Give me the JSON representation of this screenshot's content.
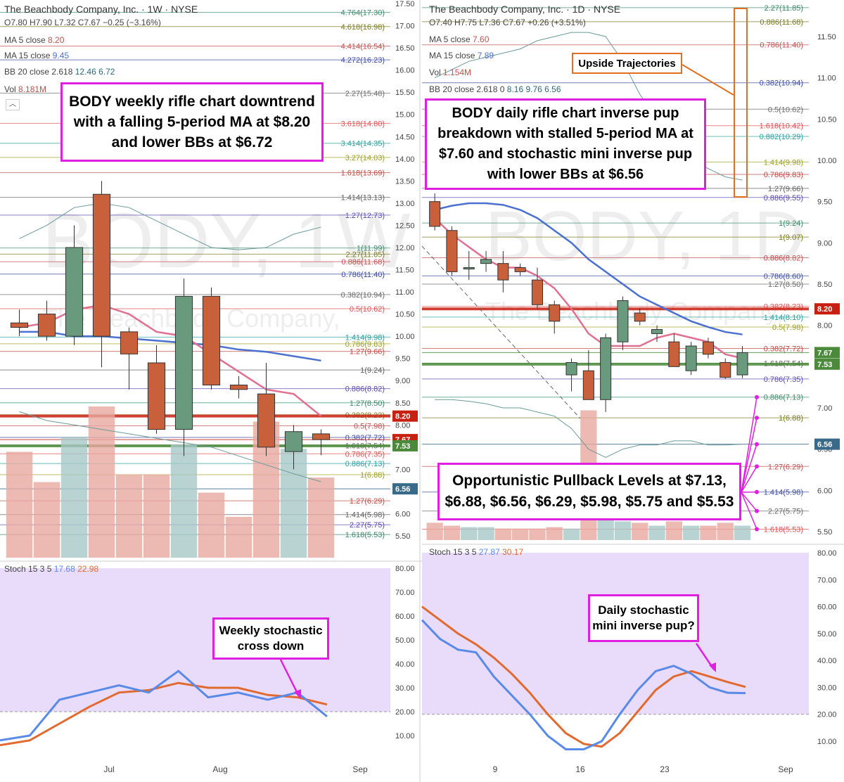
{
  "colors": {
    "up": "#6a9a7e",
    "down": "#c8603c",
    "ma_fast": "#e07090",
    "ma_slow": "#4a70d0",
    "stoch_k": "#5a8ae8",
    "stoch_d": "#e06a30",
    "callout": "#e020e0",
    "red_line": "#c82010",
    "green_line": "#4a8a3a",
    "stoch_bg": "#e9dcfa"
  },
  "left": {
    "symbol": "The Beachbody Company, Inc. · 1W · NYSE",
    "ohlc": "O7.80 H7.90 L7.32 C7.67 −0.25 (−3.16%)",
    "ma5": "MA 5 close",
    "ma5_val": "8.20",
    "ma15": "MA 15 close",
    "ma15_val": "9.45",
    "bb": "BB 20 close 2.618",
    "bb_val": "12.46  6.72",
    "vol": "Vol",
    "vol_val": "8.181M",
    "watermark": "BODY, 1W",
    "watermark_sub": "The Beachbody Company,",
    "callout": "BODY weekly rifle chart downtrend with a falling 5-period MA at $8.20 and lower BBs at $6.72",
    "stoch_callout": "Weekly stochastic cross down",
    "stoch_title": "Stoch 15 3 5",
    "stoch_k_val": "17.68",
    "stoch_d_val": "22.98",
    "price_ticks": [
      "17.50",
      "17.00",
      "16.50",
      "16.00",
      "15.50",
      "15.00",
      "14.50",
      "14.00",
      "13.50",
      "13.00",
      "12.50",
      "12.00",
      "11.50",
      "11.00",
      "10.50",
      "10.00",
      "9.50",
      "9.00",
      "8.50",
      "8.00",
      "7.00",
      "6.50",
      "6.00",
      "5.50"
    ],
    "stoch_ticks": [
      "80.00",
      "70.00",
      "60.00",
      "50.00",
      "40.00",
      "30.00",
      "20.00",
      "10.00"
    ],
    "x_labels": [
      "Jul",
      "Aug",
      "Sep"
    ],
    "badges": [
      {
        "text": "8.20",
        "price": 8.2,
        "color": "#c82010"
      },
      {
        "text": "7.67",
        "price": 7.67,
        "color": "#c82010"
      },
      {
        "text": "7.53",
        "price": 7.53,
        "color": "#4a8a3a"
      },
      {
        "text": "6.56",
        "price": 6.56,
        "color": "#3a6a8a"
      }
    ],
    "fib_labels": [
      {
        "t": "4.764(17.30)",
        "p": 17.3
      },
      {
        "t": "4.618(16.98)",
        "p": 16.98
      },
      {
        "t": "4.414(16.54)",
        "p": 16.54
      },
      {
        "t": "4.272(16.23)",
        "p": 16.23
      },
      {
        "t": "2.27(15.48)",
        "p": 15.48
      },
      {
        "t": "3.618(14.80)",
        "p": 14.8
      },
      {
        "t": "3.414(14.35)",
        "p": 14.35
      },
      {
        "t": "3.27(14.03)",
        "p": 14.03
      },
      {
        "t": "1.618(13.69)",
        "p": 13.69
      },
      {
        "t": "1.414(13.13)",
        "p": 13.13
      },
      {
        "t": "1.27(12.73)",
        "p": 12.73
      },
      {
        "t": "1(11.99)",
        "p": 11.99
      },
      {
        "t": "2.27(11.85)",
        "p": 11.85
      },
      {
        "t": "0.886(11.68)",
        "p": 11.68
      },
      {
        "t": "0.786(11.40)",
        "p": 11.4
      },
      {
        "t": "0.382(10.94)",
        "p": 10.94
      },
      {
        "t": "0.5(10.62)",
        "p": 10.62
      },
      {
        "t": "1.414(9.98)",
        "p": 9.98
      },
      {
        "t": "0.786(9.83)",
        "p": 9.83
      },
      {
        "t": "1.27(9.66)",
        "p": 9.66
      },
      {
        "t": "1(9.24)",
        "p": 9.24
      },
      {
        "t": "0.886(8.82)",
        "p": 8.82
      },
      {
        "t": "1.27(8.50)",
        "p": 8.5
      },
      {
        "t": "0.382(8.23)",
        "p": 8.23
      },
      {
        "t": "0.5(7.98)",
        "p": 7.98
      },
      {
        "t": "0.382(7.72)",
        "p": 7.72
      },
      {
        "t": "1.618(7.54)",
        "p": 7.54
      },
      {
        "t": "0.786(7.35)",
        "p": 7.35
      },
      {
        "t": "0.886(7.13)",
        "p": 7.13
      },
      {
        "t": "1(6.88)",
        "p": 6.88
      },
      {
        "t": "1.27(6.29)",
        "p": 6.29
      },
      {
        "t": "1.414(5.98)",
        "p": 5.98
      },
      {
        "t": "2.27(5.75)",
        "p": 5.75
      },
      {
        "t": "1.618(5.53)",
        "p": 5.53
      }
    ]
  },
  "right": {
    "symbol": "The Beachbody Company, Inc. · 1D · NYSE",
    "ohlc": "O7.40 H7.75 L7.36 C7.67 +0.26 (+3.51%)",
    "ma5": "MA 5 close",
    "ma5_val": "7.60",
    "ma15": "MA 15 close",
    "ma15_val": "7.89",
    "vol": "Vol",
    "vol_val": "1.154M",
    "bb": "BB 20 close 2.618 0",
    "bb_val": "8.16  9.76  6.56",
    "watermark": "BODY, 1D",
    "watermark_sub": "The Beachbody Company,",
    "callout": "BODY daily rifle chart inverse pup breakdown with stalled 5-period MA at $7.60 and stochastic mini inverse pup with lower BBs at $6.56",
    "upside_callout": "Upside Trajectories",
    "pullback_callout": "Opportunistic Pullback Levels at $7.13, $6.88, $6.56, $6.29, $5.98, $5.75 and $5.53",
    "stoch_callout": "Daily stochastic mini inverse pup?",
    "stoch_title": "Stoch 15 3 5",
    "stoch_k_val": "27.87",
    "stoch_d_val": "30.17",
    "price_ticks": [
      "11.50",
      "11.00",
      "10.50",
      "10.00",
      "9.50",
      "9.00",
      "8.50",
      "8.00",
      "7.00",
      "6.50",
      "6.00",
      "5.50"
    ],
    "stoch_ticks": [
      "80.00",
      "70.00",
      "60.00",
      "50.00",
      "40.00",
      "30.00",
      "20.00",
      "10.00"
    ],
    "x_labels": [
      "9",
      "16",
      "23",
      "Sep"
    ],
    "badges": [
      {
        "text": "8.20",
        "price": 8.2,
        "color": "#c82010"
      },
      {
        "text": "7.67",
        "price": 7.67,
        "color": "#4a8a3a"
      },
      {
        "text": "7.53",
        "price": 7.53,
        "color": "#4a8a3a"
      },
      {
        "text": "6.56",
        "price": 6.56,
        "color": "#3a6a8a"
      }
    ],
    "fib_labels": [
      {
        "t": "2.27(11.85)",
        "p": 11.85
      },
      {
        "t": "0.886(11.68)",
        "p": 11.68
      },
      {
        "t": "0.786(11.40)",
        "p": 11.4
      },
      {
        "t": "0.382(10.94)",
        "p": 10.94
      },
      {
        "t": "0.5(10.62)",
        "p": 10.62
      },
      {
        "t": "1.618(10.42)",
        "p": 10.42
      },
      {
        "t": "0.882(10.29)",
        "p": 10.29
      },
      {
        "t": "1.414(9.98)",
        "p": 9.98
      },
      {
        "t": "0.786(9.83)",
        "p": 9.83
      },
      {
        "t": "1.27(9.66)",
        "p": 9.66
      },
      {
        "t": "0.886(9.55)",
        "p": 9.55
      },
      {
        "t": "1(9.24)",
        "p": 9.24
      },
      {
        "t": "1(9.07)",
        "p": 9.07
      },
      {
        "t": "0.886(8.82)",
        "p": 8.82
      },
      {
        "t": "0.786(8.60)",
        "p": 8.6
      },
      {
        "t": "1.27(8.50)",
        "p": 8.5
      },
      {
        "t": "0.382(8.23)",
        "p": 8.23
      },
      {
        "t": "1.414(8.10)",
        "p": 8.1
      },
      {
        "t": "0.5(7.98)",
        "p": 7.98
      },
      {
        "t": "0.382(7.72)",
        "p": 7.72
      },
      {
        "t": "1.618(7.54)",
        "p": 7.54
      },
      {
        "t": "0.786(7.35)",
        "p": 7.35
      },
      {
        "t": "0.886(7.13)",
        "p": 7.13
      },
      {
        "t": "1(6.88)",
        "p": 6.88
      },
      {
        "t": "1.27(6.29)",
        "p": 6.29
      },
      {
        "t": "1.414(5.98)",
        "p": 5.98
      },
      {
        "t": "2.27(5.75)",
        "p": 5.75
      },
      {
        "t": "1.618(5.53)",
        "p": 5.53
      }
    ]
  },
  "chart_data": [
    {
      "type": "candlestick",
      "title": "The Beachbody Company, Inc. · 1W · NYSE",
      "x_labels": [
        "Jul",
        "Aug",
        "Sep"
      ],
      "ylim": [
        5.3,
        17.6
      ],
      "candles": [
        {
          "o": 10.3,
          "h": 10.6,
          "l": 10.0,
          "c": 10.2
        },
        {
          "o": 10.5,
          "h": 10.8,
          "l": 9.9,
          "c": 10.0
        },
        {
          "o": 10.0,
          "h": 12.5,
          "l": 9.8,
          "c": 12.0
        },
        {
          "o": 13.2,
          "h": 13.5,
          "l": 9.3,
          "c": 10.0
        },
        {
          "o": 10.1,
          "h": 10.2,
          "l": 8.8,
          "c": 9.6
        },
        {
          "o": 9.4,
          "h": 9.8,
          "l": 7.8,
          "c": 7.9
        },
        {
          "o": 7.9,
          "h": 11.3,
          "l": 7.3,
          "c": 10.9
        },
        {
          "o": 10.9,
          "h": 11.1,
          "l": 8.8,
          "c": 8.9
        },
        {
          "o": 8.9,
          "h": 9.1,
          "l": 8.6,
          "c": 8.8
        },
        {
          "o": 8.7,
          "h": 9.4,
          "l": 7.3,
          "c": 7.5
        },
        {
          "o": 7.4,
          "h": 8.0,
          "l": 7.0,
          "c": 7.85
        },
        {
          "o": 7.8,
          "h": 7.9,
          "l": 7.32,
          "c": 7.67
        }
      ],
      "ma5": [
        10.2,
        10.3,
        10.6,
        10.7,
        10.5,
        10.1,
        10.0,
        9.6,
        9.2,
        8.8,
        8.7,
        8.2
      ],
      "ma15": [
        10.1,
        10.1,
        10.0,
        10.0,
        9.95,
        9.9,
        9.85,
        9.8,
        9.7,
        9.65,
        9.55,
        9.45
      ],
      "bb_upper": [
        12.2,
        12.5,
        12.9,
        13.0,
        12.9,
        12.6,
        12.3,
        12.0,
        11.95,
        12.0,
        12.3,
        12.46
      ],
      "bb_lower": [
        8.3,
        8.1,
        8.0,
        7.9,
        7.8,
        7.7,
        7.6,
        7.5,
        7.3,
        7.1,
        6.9,
        6.72
      ],
      "volume": [
        0.7,
        0.5,
        0.8,
        1.0,
        0.55,
        0.55,
        0.75,
        0.43,
        0.27,
        0.9,
        0.72,
        0.53
      ],
      "stoch_k": [
        8,
        10,
        25,
        28,
        31,
        28,
        37,
        26,
        28,
        25,
        28,
        18
      ],
      "stoch_d": [
        6,
        8,
        15,
        22,
        28,
        29,
        32,
        30,
        30,
        27,
        26,
        23
      ],
      "stoch_ylim": [
        0,
        85
      ]
    },
    {
      "type": "candlestick",
      "title": "The Beachbody Company, Inc. · 1D · NYSE",
      "x_labels": [
        "9",
        "16",
        "23",
        "Sep"
      ],
      "ylim": [
        5.3,
        11.95
      ],
      "candles": [
        {
          "o": 9.5,
          "h": 9.6,
          "l": 9.15,
          "c": 9.2
        },
        {
          "o": 9.15,
          "h": 9.2,
          "l": 8.6,
          "c": 8.65
        },
        {
          "o": 8.7,
          "h": 8.9,
          "l": 8.55,
          "c": 8.7
        },
        {
          "o": 8.75,
          "h": 8.9,
          "l": 8.65,
          "c": 8.8
        },
        {
          "o": 8.75,
          "h": 8.9,
          "l": 8.4,
          "c": 8.55
        },
        {
          "o": 8.7,
          "h": 8.75,
          "l": 8.6,
          "c": 8.65
        },
        {
          "o": 8.55,
          "h": 8.7,
          "l": 8.2,
          "c": 8.25
        },
        {
          "o": 8.25,
          "h": 8.3,
          "l": 7.9,
          "c": 8.05
        },
        {
          "o": 7.4,
          "h": 7.6,
          "l": 7.2,
          "c": 7.55
        },
        {
          "o": 7.45,
          "h": 7.7,
          "l": 7.1,
          "c": 7.1
        },
        {
          "o": 7.1,
          "h": 7.9,
          "l": 6.95,
          "c": 7.85
        },
        {
          "o": 7.8,
          "h": 8.35,
          "l": 7.7,
          "c": 8.3
        },
        {
          "o": 8.15,
          "h": 8.2,
          "l": 8.0,
          "c": 8.05
        },
        {
          "o": 7.9,
          "h": 8.0,
          "l": 7.8,
          "c": 7.95
        },
        {
          "o": 7.8,
          "h": 7.9,
          "l": 7.5,
          "c": 7.5
        },
        {
          "o": 7.45,
          "h": 7.8,
          "l": 7.4,
          "c": 7.75
        },
        {
          "o": 7.8,
          "h": 7.85,
          "l": 7.6,
          "c": 7.65
        },
        {
          "o": 7.55,
          "h": 7.6,
          "l": 7.35,
          "c": 7.37
        },
        {
          "o": 7.4,
          "h": 7.75,
          "l": 7.36,
          "c": 7.67
        }
      ],
      "ma5": [
        9.3,
        9.1,
        8.95,
        8.8,
        8.7,
        8.7,
        8.6,
        8.45,
        8.2,
        7.9,
        7.75,
        7.75,
        7.75,
        7.85,
        7.9,
        7.85,
        7.8,
        7.65,
        7.6
      ],
      "ma15": [
        9.4,
        9.45,
        9.48,
        9.48,
        9.46,
        9.4,
        9.3,
        9.15,
        9.0,
        8.8,
        8.65,
        8.5,
        8.35,
        8.25,
        8.15,
        8.05,
        7.98,
        7.92,
        7.89
      ],
      "bb_upper": [
        11.0,
        11.1,
        11.2,
        11.25,
        11.3,
        11.35,
        11.45,
        11.5,
        11.55,
        11.55,
        11.5,
        11.2,
        10.8,
        10.5,
        10.2,
        10.0,
        9.9,
        9.8,
        9.76
      ],
      "bb_lower": [
        7.1,
        7.1,
        7.08,
        7.05,
        7.0,
        7.0,
        6.95,
        6.9,
        6.75,
        6.5,
        6.4,
        6.5,
        6.55,
        6.55,
        6.6,
        6.6,
        6.55,
        6.55,
        6.56
      ],
      "volume": [
        0.12,
        0.1,
        0.09,
        0.09,
        0.08,
        0.08,
        0.08,
        0.09,
        0.08,
        0.9,
        0.22,
        0.13,
        0.12,
        0.1,
        0.13,
        0.1,
        0.1,
        0.12,
        0.1
      ],
      "stoch_k": [
        55,
        48,
        44,
        43,
        34,
        27,
        20,
        12,
        7,
        7,
        10,
        20,
        29,
        36,
        38,
        35,
        30,
        28,
        27.87
      ],
      "stoch_d": [
        60,
        55,
        50,
        46,
        41,
        35,
        28,
        20,
        13,
        9,
        8,
        13,
        21,
        29,
        34,
        36,
        34,
        32,
        30.17
      ],
      "stoch_ylim": [
        5,
        85
      ]
    }
  ]
}
